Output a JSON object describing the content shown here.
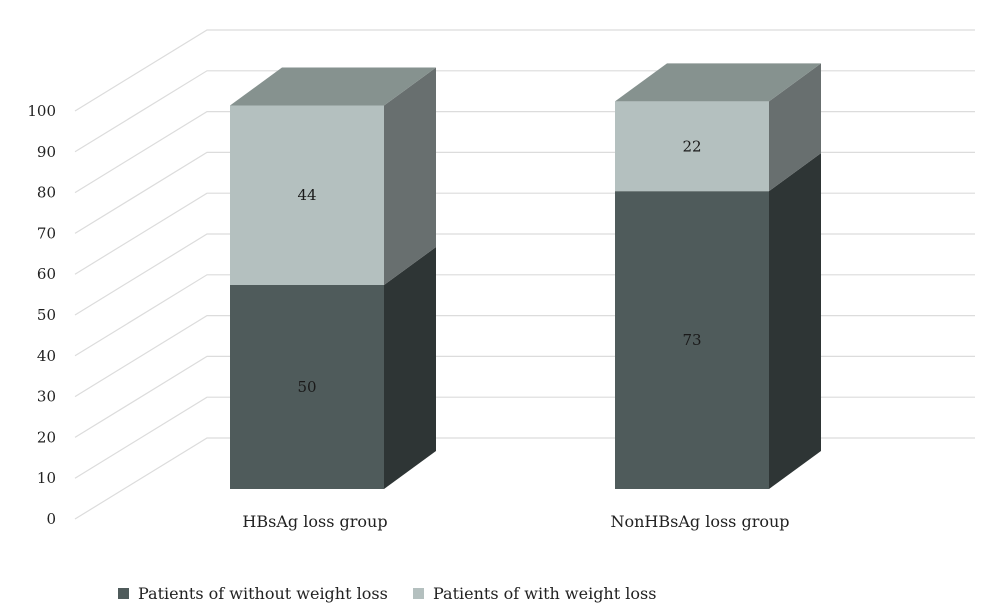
{
  "chart_data": {
    "type": "bar",
    "stacked": true,
    "style": "3d",
    "categories": [
      "HBsAg loss group",
      "NonHBsAg loss group"
    ],
    "series": [
      {
        "name": "Patients of without weight loss",
        "values": [
          50,
          73
        ],
        "color": "#4f5b5b"
      },
      {
        "name": "Patients of with weight loss",
        "values": [
          44,
          22
        ],
        "color": "#b4c0bf"
      }
    ],
    "ylim": [
      0,
      100
    ],
    "yticks": [
      0,
      10,
      20,
      30,
      40,
      50,
      60,
      70,
      80,
      90,
      100
    ],
    "grid": true,
    "legend_position": "bottom"
  }
}
